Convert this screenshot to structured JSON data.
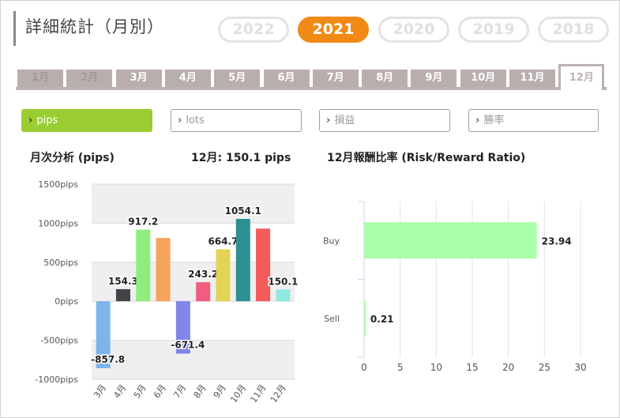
{
  "page_title": "詳細統計（月別）",
  "years": [
    {
      "label": "2022",
      "active": false
    },
    {
      "label": "2021",
      "active": true
    },
    {
      "label": "2020",
      "active": false
    },
    {
      "label": "2019",
      "active": false
    },
    {
      "label": "2018",
      "active": false
    }
  ],
  "months": [
    {
      "label": "1月",
      "state": "dim"
    },
    {
      "label": "2月",
      "state": "dim"
    },
    {
      "label": "3月",
      "state": "normal"
    },
    {
      "label": "4月",
      "state": "normal"
    },
    {
      "label": "5月",
      "state": "normal"
    },
    {
      "label": "6月",
      "state": "normal"
    },
    {
      "label": "7月",
      "state": "normal"
    },
    {
      "label": "8月",
      "state": "normal"
    },
    {
      "label": "9月",
      "state": "normal"
    },
    {
      "label": "10月",
      "state": "normal"
    },
    {
      "label": "11月",
      "state": "normal"
    },
    {
      "label": "12月",
      "state": "active"
    }
  ],
  "metrics": [
    {
      "label": "pips",
      "active": true
    },
    {
      "label": "lots",
      "active": false
    },
    {
      "label": "損益",
      "active": false
    },
    {
      "label": "勝率",
      "active": false
    }
  ],
  "monthly_section": {
    "title": "月次分析 (pips)",
    "summary": "12月:  150.1 pips"
  },
  "ratio_section": {
    "title": "12月報酬比率 (Risk/Reward Ratio)"
  },
  "chart_data": [
    {
      "type": "bar",
      "title": "月次分析 (pips)",
      "categories": [
        "3月",
        "4月",
        "5月",
        "6月",
        "7月",
        "8月",
        "9月",
        "10月",
        "11月",
        "12月"
      ],
      "values": [
        -857.8,
        154.3,
        917.2,
        810,
        -671.4,
        243.2,
        664.7,
        1054.1,
        930,
        150.1
      ],
      "data_labels": [
        "-857.8",
        "154.3",
        "917.2",
        "",
        "-671.4",
        "243.2",
        "664.7",
        "1054.1",
        "",
        "150.1"
      ],
      "colors": [
        "#7cb5ec",
        "#434348",
        "#90ed7d",
        "#f7a35c",
        "#8085e9",
        "#f15c80",
        "#e4d354",
        "#2b908f",
        "#f45b5b",
        "#91e8e1"
      ],
      "yticks": [
        {
          "value": 1500,
          "label": "1500pips"
        },
        {
          "value": 1000,
          "label": "1000pips"
        },
        {
          "value": 500,
          "label": "500pips"
        },
        {
          "value": 0,
          "label": "0pips"
        },
        {
          "value": -500,
          "label": "-500pips"
        },
        {
          "value": -1000,
          "label": "-1000pips"
        }
      ],
      "ylim": [
        -1000,
        1500
      ],
      "grid": "alternating bands"
    },
    {
      "type": "bar",
      "orientation": "horizontal",
      "title": "12月報酬比率 (Risk/Reward Ratio)",
      "categories": [
        "Buy",
        "Sell"
      ],
      "values": [
        23.94,
        0.21
      ],
      "data_labels": [
        "23.94",
        "0.21"
      ],
      "color": "#aaffaa",
      "xticks": [
        0,
        5,
        10,
        15,
        20,
        25,
        30
      ],
      "xlim": [
        0,
        30
      ],
      "grid": true
    }
  ]
}
